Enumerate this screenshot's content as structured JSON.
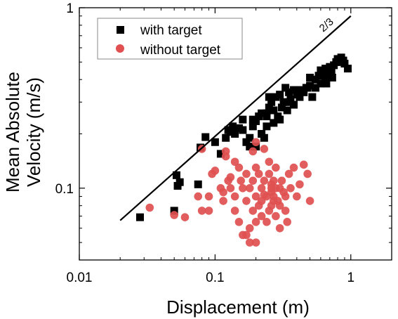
{
  "chart_data": {
    "type": "scatter",
    "x_scale": "log",
    "y_scale": "log",
    "xlabel": "Displacement (m)",
    "ylabel_line1": "Mean Absolute",
    "ylabel_line2": "Velocity (m/s)",
    "xlim": [
      0.01,
      2
    ],
    "ylim": [
      0.04,
      1
    ],
    "x_ticks": [
      {
        "value": 0.01,
        "label": "0.01"
      },
      {
        "value": 0.1,
        "label": "0.1"
      },
      {
        "value": 1,
        "label": "1"
      }
    ],
    "y_ticks": [
      {
        "value": 0.1,
        "label": "0.1"
      },
      {
        "value": 1,
        "label": "1"
      }
    ],
    "legend_position": "top-left",
    "grid": false,
    "reference_line": {
      "label": "2/3",
      "slope": 0.6667,
      "x_start": 0.02,
      "x_end": 1.0,
      "y_end": 0.9
    },
    "series": [
      {
        "name": "with target",
        "marker": "square",
        "color": "#000000",
        "points": [
          [
            0.028,
            0.069
          ],
          [
            0.05,
            0.075
          ],
          [
            0.052,
            0.118
          ],
          [
            0.055,
            0.108
          ],
          [
            0.053,
            0.103
          ],
          [
            0.078,
            0.168
          ],
          [
            0.075,
            0.105
          ],
          [
            0.085,
            0.192
          ],
          [
            0.1,
            0.18
          ],
          [
            0.11,
            0.155
          ],
          [
            0.12,
            0.19
          ],
          [
            0.125,
            0.21
          ],
          [
            0.13,
            0.205
          ],
          [
            0.135,
            0.22
          ],
          [
            0.14,
            0.2
          ],
          [
            0.15,
            0.215
          ],
          [
            0.16,
            0.21
          ],
          [
            0.17,
            0.18
          ],
          [
            0.18,
            0.19
          ],
          [
            0.19,
            0.22
          ],
          [
            0.2,
            0.235
          ],
          [
            0.21,
            0.25
          ],
          [
            0.2,
            0.17
          ],
          [
            0.22,
            0.2
          ],
          [
            0.23,
            0.19
          ],
          [
            0.24,
            0.25
          ],
          [
            0.25,
            0.28
          ],
          [
            0.26,
            0.3
          ],
          [
            0.27,
            0.27
          ],
          [
            0.28,
            0.32
          ],
          [
            0.3,
            0.33
          ],
          [
            0.32,
            0.3
          ],
          [
            0.33,
            0.36
          ],
          [
            0.35,
            0.3
          ],
          [
            0.36,
            0.31
          ],
          [
            0.38,
            0.29
          ],
          [
            0.4,
            0.33
          ],
          [
            0.43,
            0.35
          ],
          [
            0.45,
            0.34
          ],
          [
            0.48,
            0.36
          ],
          [
            0.5,
            0.37
          ],
          [
            0.52,
            0.32
          ],
          [
            0.55,
            0.4
          ],
          [
            0.58,
            0.42
          ],
          [
            0.6,
            0.38
          ],
          [
            0.62,
            0.44
          ],
          [
            0.65,
            0.4
          ],
          [
            0.68,
            0.43
          ],
          [
            0.7,
            0.47
          ],
          [
            0.72,
            0.45
          ],
          [
            0.75,
            0.48
          ],
          [
            0.78,
            0.5
          ],
          [
            0.8,
            0.52
          ],
          [
            0.82,
            0.5
          ],
          [
            0.85,
            0.53
          ],
          [
            0.88,
            0.51
          ],
          [
            0.9,
            0.49
          ],
          [
            0.95,
            0.46
          ],
          [
            0.3,
            0.24
          ],
          [
            0.27,
            0.23
          ],
          [
            0.24,
            0.22
          ],
          [
            0.19,
            0.24
          ],
          [
            0.16,
            0.24
          ],
          [
            0.22,
            0.26
          ],
          [
            0.35,
            0.34
          ],
          [
            0.42,
            0.32
          ],
          [
            0.25,
            0.32
          ],
          [
            0.29,
            0.25
          ],
          [
            0.18,
            0.17
          ],
          [
            0.55,
            0.36
          ],
          [
            0.65,
            0.46
          ],
          [
            0.6,
            0.45
          ],
          [
            0.73,
            0.41
          ],
          [
            0.66,
            0.38
          ],
          [
            0.5,
            0.41
          ],
          [
            0.47,
            0.36
          ],
          [
            0.31,
            0.28
          ],
          [
            0.34,
            0.27
          ],
          [
            0.38,
            0.35
          ],
          [
            0.24,
            0.26
          ]
        ]
      },
      {
        "name": "without target",
        "marker": "circle",
        "color": "#e05050",
        "points": [
          [
            0.033,
            0.078
          ],
          [
            0.05,
            0.071
          ],
          [
            0.06,
            0.069
          ],
          [
            0.075,
            0.09
          ],
          [
            0.08,
            0.075
          ],
          [
            0.08,
            0.165
          ],
          [
            0.09,
            0.075
          ],
          [
            0.09,
            0.09
          ],
          [
            0.095,
            0.12
          ],
          [
            0.1,
            0.125
          ],
          [
            0.11,
            0.1
          ],
          [
            0.115,
            0.095
          ],
          [
            0.12,
            0.15
          ],
          [
            0.125,
            0.11
          ],
          [
            0.115,
            0.085
          ],
          [
            0.13,
            0.115
          ],
          [
            0.13,
            0.1
          ],
          [
            0.14,
            0.09
          ],
          [
            0.14,
            0.075
          ],
          [
            0.15,
            0.13
          ],
          [
            0.15,
            0.065
          ],
          [
            0.155,
            0.11
          ],
          [
            0.16,
            0.1
          ],
          [
            0.16,
            0.055
          ],
          [
            0.17,
            0.12
          ],
          [
            0.17,
            0.085
          ],
          [
            0.18,
            0.1
          ],
          [
            0.18,
            0.06
          ],
          [
            0.19,
            0.11
          ],
          [
            0.19,
            0.075
          ],
          [
            0.2,
            0.13
          ],
          [
            0.2,
            0.09
          ],
          [
            0.2,
            0.065
          ],
          [
            0.2,
            0.18
          ],
          [
            0.21,
            0.12
          ],
          [
            0.21,
            0.08
          ],
          [
            0.22,
            0.1
          ],
          [
            0.22,
            0.07
          ],
          [
            0.23,
            0.11
          ],
          [
            0.23,
            0.165
          ],
          [
            0.24,
            0.09
          ],
          [
            0.25,
            0.12
          ],
          [
            0.25,
            0.075
          ],
          [
            0.26,
            0.1
          ],
          [
            0.26,
            0.08
          ],
          [
            0.27,
            0.11
          ],
          [
            0.27,
            0.09
          ],
          [
            0.28,
            0.07
          ],
          [
            0.28,
            0.13
          ],
          [
            0.29,
            0.085
          ],
          [
            0.3,
            0.1
          ],
          [
            0.3,
            0.08
          ],
          [
            0.32,
            0.095
          ],
          [
            0.33,
            0.075
          ],
          [
            0.35,
            0.12
          ],
          [
            0.38,
            0.13
          ],
          [
            0.4,
            0.09
          ],
          [
            0.45,
            0.135
          ],
          [
            0.48,
            0.12
          ],
          [
            0.5,
            0.085
          ],
          [
            0.34,
            0.065
          ],
          [
            0.3,
            0.06
          ],
          [
            0.24,
            0.065
          ],
          [
            0.2,
            0.05
          ],
          [
            0.18,
            0.05
          ],
          [
            0.17,
            0.055
          ],
          [
            0.36,
            0.1
          ],
          [
            0.26,
            0.095
          ],
          [
            0.22,
            0.085
          ],
          [
            0.25,
            0.14
          ],
          [
            0.23,
            0.092
          ],
          [
            0.28,
            0.1
          ],
          [
            0.31,
            0.11
          ],
          [
            0.27,
            0.085
          ],
          [
            0.14,
            0.14
          ],
          [
            0.19,
            0.16
          ],
          [
            0.33,
            0.09
          ],
          [
            0.42,
            0.105
          ],
          [
            0.12,
            0.16
          ],
          [
            0.26,
            0.105
          ]
        ]
      }
    ]
  }
}
